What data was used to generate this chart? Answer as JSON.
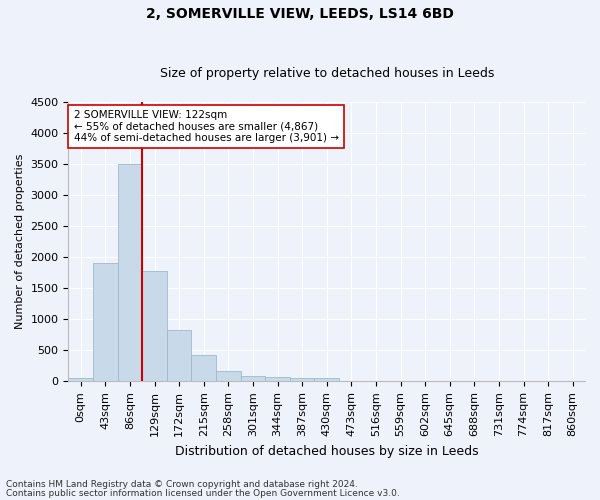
{
  "title": "2, SOMERVILLE VIEW, LEEDS, LS14 6BD",
  "subtitle": "Size of property relative to detached houses in Leeds",
  "xlabel": "Distribution of detached houses by size in Leeds",
  "ylabel": "Number of detached properties",
  "bar_color": "#c8daea",
  "bar_edge_color": "#a0b8cc",
  "vline_color": "#cc0000",
  "vline_x": 2.5,
  "annotation_text": "2 SOMERVILLE VIEW: 122sqm\n← 55% of detached houses are smaller (4,867)\n44% of semi-detached houses are larger (3,901) →",
  "annotation_box_facecolor": "#ffffff",
  "annotation_box_edgecolor": "#cc0000",
  "categories": [
    "0sqm",
    "43sqm",
    "86sqm",
    "129sqm",
    "172sqm",
    "215sqm",
    "258sqm",
    "301sqm",
    "344sqm",
    "387sqm",
    "430sqm",
    "473sqm",
    "516sqm",
    "559sqm",
    "602sqm",
    "645sqm",
    "688sqm",
    "731sqm",
    "774sqm",
    "817sqm",
    "860sqm"
  ],
  "values": [
    50,
    1900,
    3500,
    1780,
    820,
    430,
    160,
    90,
    70,
    60,
    55,
    0,
    0,
    0,
    0,
    0,
    0,
    0,
    0,
    0,
    0
  ],
  "ylim": [
    0,
    4500
  ],
  "yticks": [
    0,
    500,
    1000,
    1500,
    2000,
    2500,
    3000,
    3500,
    4000,
    4500
  ],
  "footer1": "Contains HM Land Registry data © Crown copyright and database right 2024.",
  "footer2": "Contains public sector information licensed under the Open Government Licence v3.0.",
  "title_fontsize": 10,
  "subtitle_fontsize": 9,
  "ylabel_fontsize": 8,
  "xlabel_fontsize": 9,
  "tick_fontsize": 8,
  "annot_fontsize": 7.5,
  "footer_fontsize": 6.5,
  "bg_color": "#eef2fa",
  "grid_color": "#ffffff"
}
